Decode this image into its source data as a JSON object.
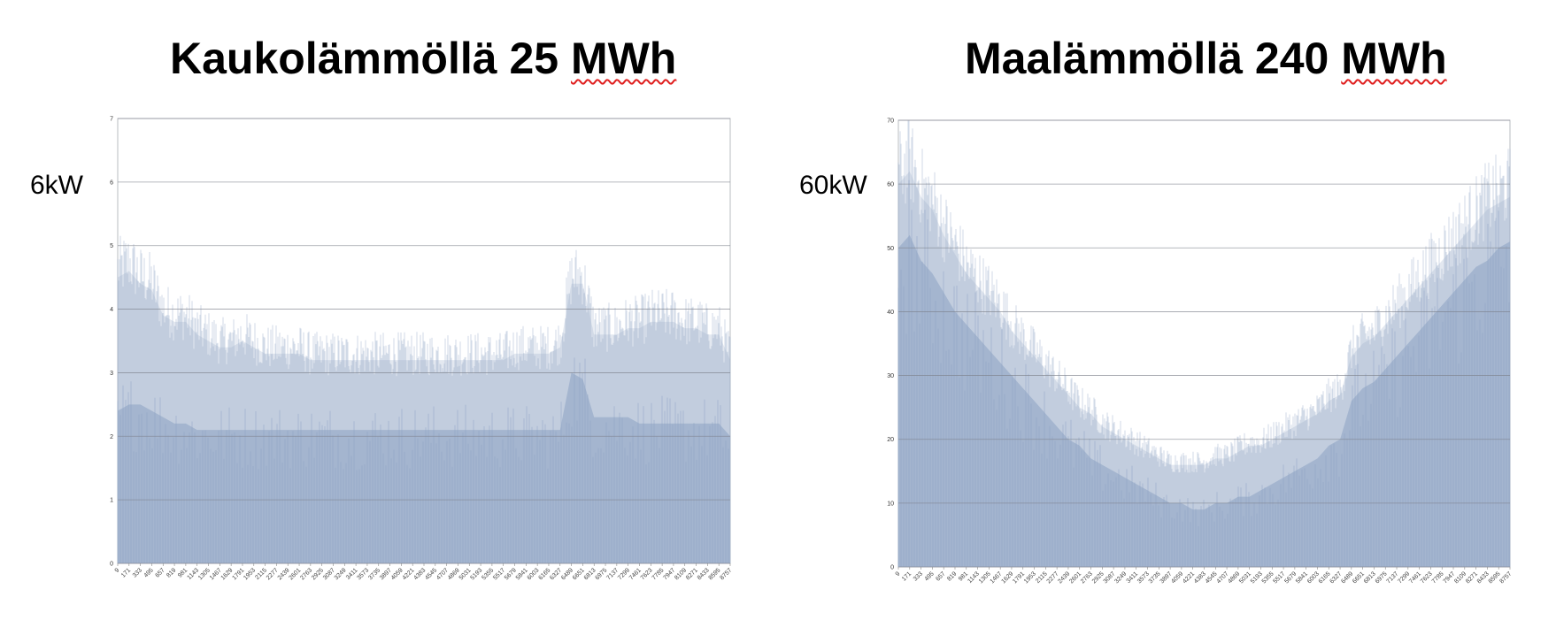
{
  "panels": [
    {
      "title_text": "Kaukolämmöllä 25 ",
      "title_unit": "MWh",
      "side_label": "6kW"
    },
    {
      "title_text": "Maalämmöllä 240 ",
      "title_unit": "MWh",
      "side_label": "60kW"
    }
  ],
  "chart_data": [
    {
      "type": "area",
      "title": "",
      "xlabel": "",
      "ylabel": "",
      "ylim": [
        0,
        7
      ],
      "y_ticks": [
        "0",
        "1",
        "2",
        "3",
        "4",
        "5",
        "6",
        "7"
      ],
      "x_tick_labels": [
        "9",
        "171",
        "333",
        "495",
        "657",
        "819",
        "981",
        "1143",
        "1305",
        "1467",
        "1629",
        "1791",
        "1953",
        "2115",
        "2277",
        "2439",
        "2601",
        "2763",
        "2925",
        "3087",
        "3249",
        "3411",
        "3573",
        "3735",
        "3897",
        "4059",
        "4221",
        "4383",
        "4545",
        "4707",
        "4869",
        "5031",
        "5193",
        "5355",
        "5517",
        "5679",
        "5841",
        "6003",
        "6165",
        "6327",
        "6489",
        "6651",
        "6813",
        "6975",
        "7137",
        "7299",
        "7461",
        "7623",
        "7785",
        "7947",
        "8109",
        "8271",
        "8433",
        "8595",
        "8757"
      ],
      "grid": true,
      "color": "#9aaeca",
      "series": [
        {
          "x": [
            9,
            171,
            333,
            495,
            657,
            819,
            981,
            1143,
            1305,
            1467,
            1629,
            1791,
            1953,
            2115,
            2277,
            2439,
            2601,
            2763,
            2925,
            3087,
            3249,
            3411,
            3573,
            3735,
            3897,
            4059,
            4221,
            4383,
            4545,
            4707,
            4869,
            5031,
            5193,
            5355,
            5517,
            5679,
            5841,
            6003,
            6165,
            6327,
            6489,
            6651,
            6813,
            6975,
            7137,
            7299,
            7461,
            7623,
            7785,
            7947,
            8109,
            8271,
            8433,
            8595,
            8757
          ],
          "upper": [
            4.5,
            4.6,
            4.4,
            4.3,
            3.9,
            3.8,
            3.8,
            3.6,
            3.5,
            3.4,
            3.4,
            3.5,
            3.4,
            3.3,
            3.3,
            3.3,
            3.3,
            3.2,
            3.2,
            3.2,
            3.2,
            3.2,
            3.2,
            3.2,
            3.2,
            3.2,
            3.2,
            3.2,
            3.2,
            3.2,
            3.2,
            3.2,
            3.2,
            3.2,
            3.2,
            3.3,
            3.3,
            3.3,
            3.3,
            3.4,
            4.4,
            4.4,
            3.6,
            3.6,
            3.6,
            3.7,
            3.7,
            3.8,
            3.8,
            3.8,
            3.7,
            3.7,
            3.6,
            3.6,
            3.2
          ],
          "base": [
            2.4,
            2.5,
            2.5,
            2.4,
            2.3,
            2.2,
            2.2,
            2.1,
            2.1,
            2.1,
            2.1,
            2.1,
            2.1,
            2.1,
            2.1,
            2.1,
            2.1,
            2.1,
            2.1,
            2.1,
            2.1,
            2.1,
            2.1,
            2.1,
            2.1,
            2.1,
            2.1,
            2.1,
            2.1,
            2.1,
            2.1,
            2.1,
            2.1,
            2.1,
            2.1,
            2.1,
            2.1,
            2.1,
            2.1,
            2.1,
            3.0,
            2.9,
            2.3,
            2.3,
            2.3,
            2.3,
            2.2,
            2.2,
            2.2,
            2.2,
            2.2,
            2.2,
            2.2,
            2.2,
            2.0
          ]
        }
      ]
    },
    {
      "type": "area",
      "title": "",
      "xlabel": "",
      "ylabel": "",
      "ylim": [
        0,
        70
      ],
      "y_ticks": [
        "0",
        "10",
        "20",
        "30",
        "40",
        "50",
        "60",
        "70"
      ],
      "x_tick_labels": [
        "9",
        "171",
        "333",
        "495",
        "657",
        "819",
        "981",
        "1143",
        "1305",
        "1467",
        "1629",
        "1791",
        "1953",
        "2115",
        "2277",
        "2439",
        "2601",
        "2763",
        "2925",
        "3087",
        "3249",
        "3411",
        "3573",
        "3735",
        "3897",
        "4059",
        "4221",
        "4383",
        "4545",
        "4707",
        "4869",
        "5031",
        "5193",
        "5355",
        "5517",
        "5679",
        "5841",
        "6003",
        "6165",
        "6327",
        "6489",
        "6651",
        "6813",
        "6975",
        "7137",
        "7299",
        "7461",
        "7623",
        "7785",
        "7947",
        "8109",
        "8271",
        "8433",
        "8595",
        "8757"
      ],
      "grid": true,
      "color": "#9aaeca",
      "series": [
        {
          "x": [
            9,
            171,
            333,
            495,
            657,
            819,
            981,
            1143,
            1305,
            1467,
            1629,
            1791,
            1953,
            2115,
            2277,
            2439,
            2601,
            2763,
            2925,
            3087,
            3249,
            3411,
            3573,
            3735,
            3897,
            4059,
            4221,
            4383,
            4545,
            4707,
            4869,
            5031,
            5193,
            5355,
            5517,
            5679,
            5841,
            6003,
            6165,
            6327,
            6489,
            6651,
            6813,
            6975,
            7137,
            7299,
            7461,
            7623,
            7785,
            7947,
            8109,
            8271,
            8433,
            8595,
            8757
          ],
          "upper": [
            60,
            62,
            58,
            56,
            52,
            49,
            46,
            44,
            42,
            40,
            37,
            35,
            33,
            31,
            29,
            27,
            25,
            24,
            22,
            21,
            20,
            19,
            18,
            17,
            16,
            16,
            16,
            16,
            17,
            17,
            18,
            19,
            19,
            20,
            21,
            22,
            23,
            24,
            26,
            27,
            33,
            35,
            36,
            38,
            40,
            42,
            44,
            46,
            48,
            50,
            52,
            54,
            56,
            57,
            58
          ],
          "base": [
            50,
            52,
            48,
            46,
            43,
            40,
            38,
            36,
            34,
            32,
            30,
            28,
            26,
            24,
            22,
            20,
            19,
            17,
            16,
            15,
            14,
            13,
            12,
            11,
            10,
            10,
            9,
            9,
            10,
            10,
            11,
            11,
            12,
            13,
            14,
            15,
            16,
            17,
            19,
            20,
            26,
            28,
            29,
            31,
            33,
            35,
            37,
            39,
            41,
            43,
            45,
            47,
            48,
            50,
            51
          ]
        }
      ]
    }
  ]
}
